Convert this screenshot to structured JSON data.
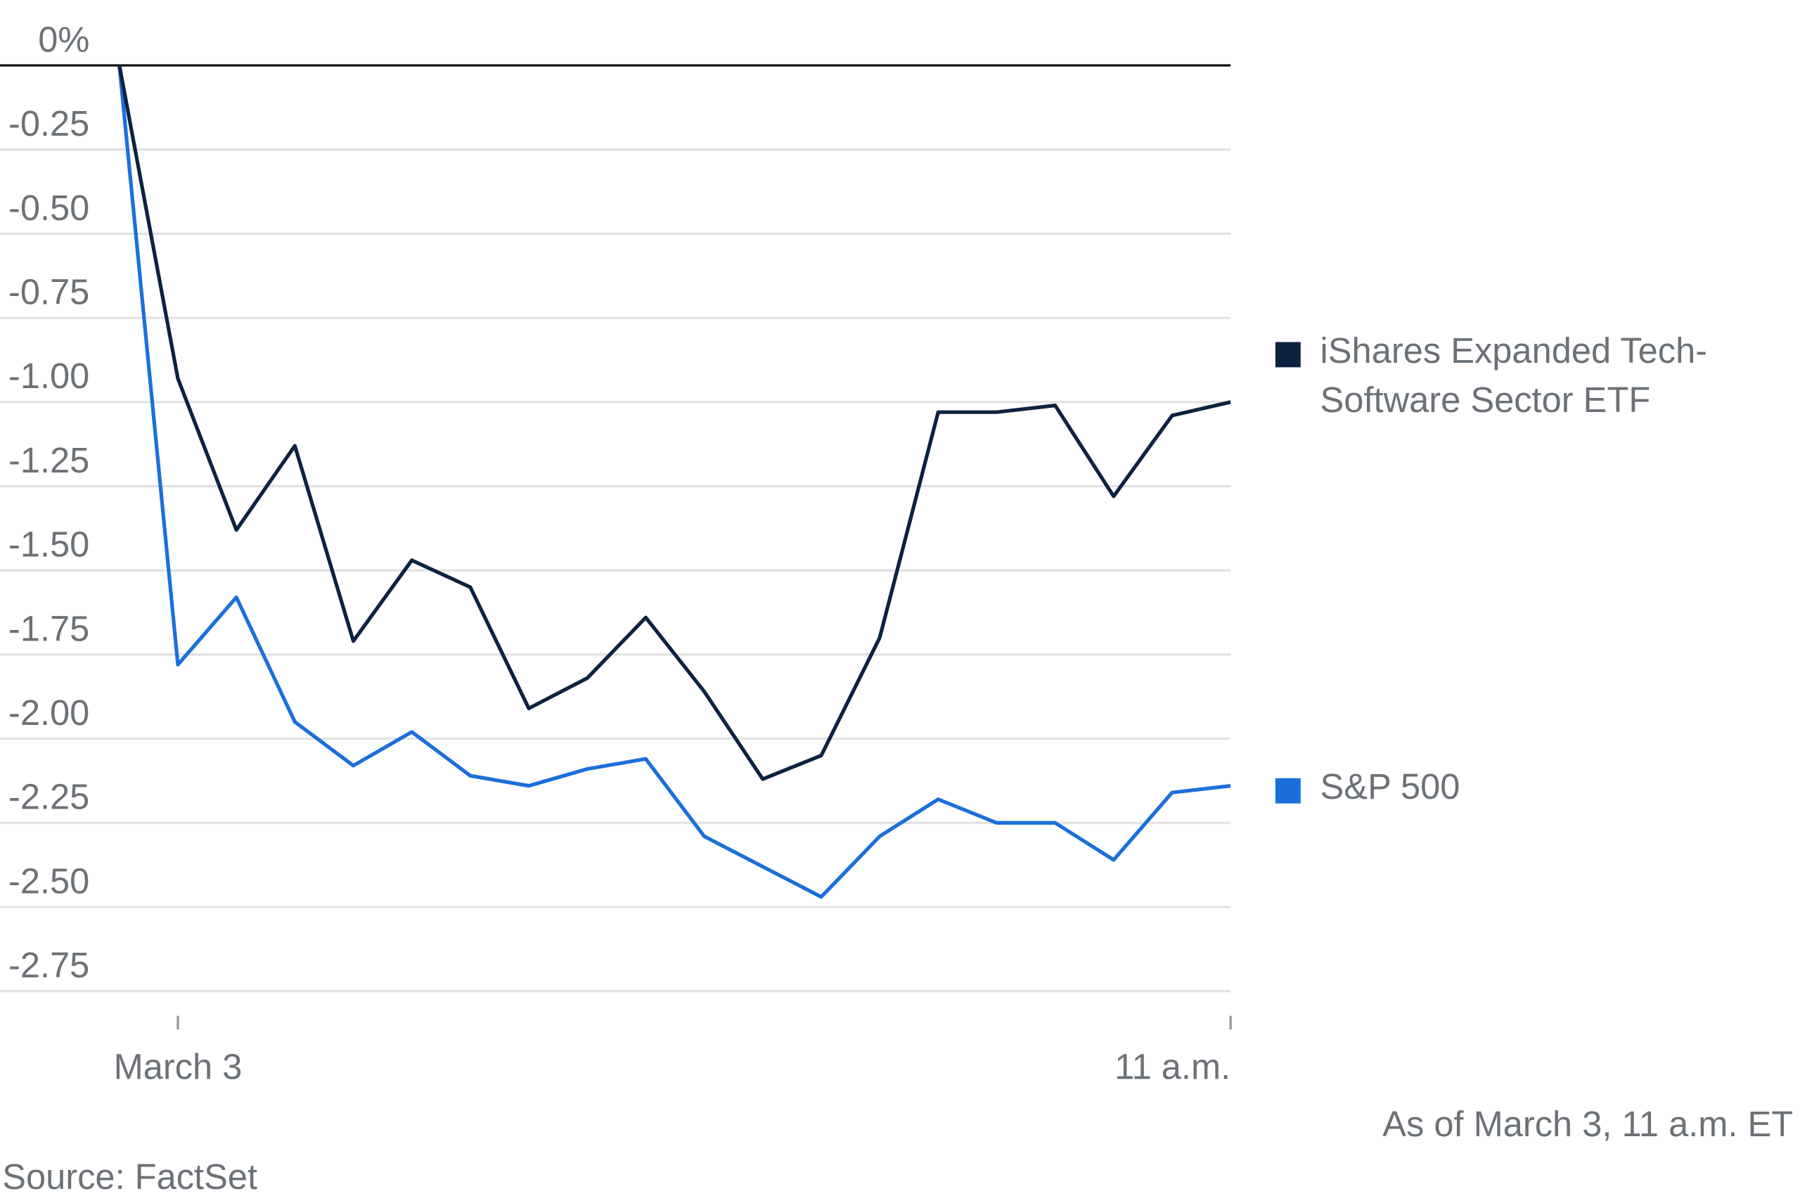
{
  "chart_data": {
    "type": "line",
    "categories": [
      null,
      "March 3",
      null,
      null,
      null,
      null,
      null,
      null,
      null,
      null,
      null,
      null,
      null,
      null,
      null,
      null,
      null,
      null,
      null,
      "11 a.m."
    ],
    "series": [
      {
        "name": "iShares Expanded Tech-Software Sector ETF",
        "color": "#0d2240",
        "values": [
          0,
          -0.93,
          -1.38,
          -1.13,
          -1.71,
          -1.47,
          -1.55,
          -1.91,
          -1.82,
          -1.64,
          -1.86,
          -2.12,
          -2.05,
          -1.7,
          -1.03,
          -1.03,
          -1.01,
          -1.28,
          -1.04,
          -1.0
        ]
      },
      {
        "name": "S&P 500",
        "color": "#1a6fdb",
        "values": [
          0,
          -1.78,
          -1.58,
          -1.95,
          -2.08,
          -1.98,
          -2.11,
          -2.14,
          -2.09,
          -2.06,
          -2.29,
          -2.38,
          -2.47,
          -2.29,
          -2.18,
          -2.25,
          -2.25,
          -2.36,
          -2.16,
          -2.14
        ]
      }
    ],
    "ylim": [
      -2.83,
      0
    ],
    "yticks": [
      {
        "value": 0,
        "label": "0%"
      },
      -0.25,
      {
        "value": -0.5,
        "label": "-0.50"
      },
      -0.75,
      {
        "value": -1,
        "label": "-1.00"
      },
      -1.25,
      {
        "value": -1.5,
        "label": "-1.50"
      },
      -1.75,
      {
        "value": -2,
        "label": "-2.00"
      },
      -2.25,
      {
        "value": -2.5,
        "label": "-2.50"
      },
      -2.75
    ],
    "grid": true,
    "legend": "right",
    "note": "As of March 3, 11 a.m. ET",
    "source": "Source: FactSet"
  }
}
